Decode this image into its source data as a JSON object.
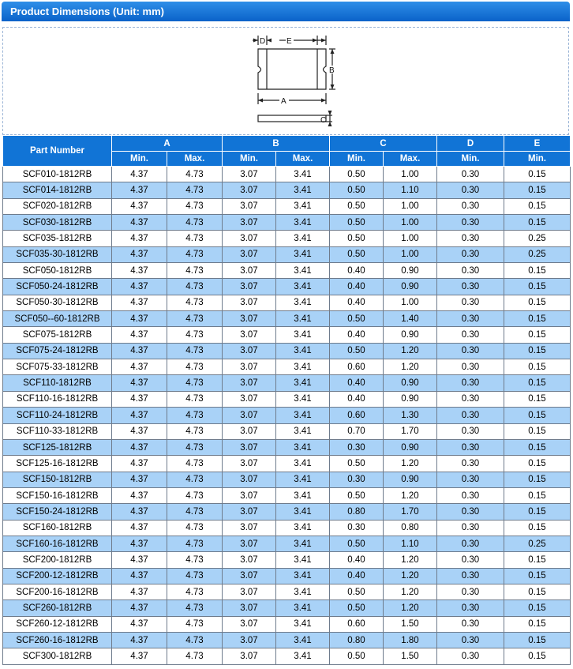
{
  "title": "Product Dimensions (Unit: mm)",
  "diagram": {
    "labels": [
      "D",
      "E",
      "B",
      "A",
      "C"
    ]
  },
  "table": {
    "part_header": "Part Number",
    "groups": [
      "A",
      "B",
      "C",
      "D",
      "E"
    ],
    "sub_headers": [
      "Min.",
      "Max.",
      "Min.",
      "Max.",
      "Min.",
      "Max.",
      "Min.",
      "Min."
    ],
    "rows": [
      [
        "SCF010-1812RB",
        "4.37",
        "4.73",
        "3.07",
        "3.41",
        "0.50",
        "1.00",
        "0.30",
        "0.15"
      ],
      [
        "SCF014-1812RB",
        "4.37",
        "4.73",
        "3.07",
        "3.41",
        "0.50",
        "1.10",
        "0.30",
        "0.15"
      ],
      [
        "SCF020-1812RB",
        "4.37",
        "4.73",
        "3.07",
        "3.41",
        "0.50",
        "1.00",
        "0.30",
        "0.15"
      ],
      [
        "SCF030-1812RB",
        "4.37",
        "4.73",
        "3.07",
        "3.41",
        "0.50",
        "1.00",
        "0.30",
        "0.15"
      ],
      [
        "SCF035-1812RB",
        "4.37",
        "4.73",
        "3.07",
        "3.41",
        "0.50",
        "1.00",
        "0.30",
        "0.25"
      ],
      [
        "SCF035-30-1812RB",
        "4.37",
        "4.73",
        "3.07",
        "3.41",
        "0.50",
        "1.00",
        "0.30",
        "0.25"
      ],
      [
        "SCF050-1812RB",
        "4.37",
        "4.73",
        "3.07",
        "3.41",
        "0.40",
        "0.90",
        "0.30",
        "0.15"
      ],
      [
        "SCF050-24-1812RB",
        "4.37",
        "4.73",
        "3.07",
        "3.41",
        "0.40",
        "0.90",
        "0.30",
        "0.15"
      ],
      [
        "SCF050-30-1812RB",
        "4.37",
        "4.73",
        "3.07",
        "3.41",
        "0.40",
        "1.00",
        "0.30",
        "0.15"
      ],
      [
        "SCF050--60-1812RB",
        "4.37",
        "4.73",
        "3.07",
        "3.41",
        "0.50",
        "1.40",
        "0.30",
        "0.15"
      ],
      [
        "SCF075-1812RB",
        "4.37",
        "4.73",
        "3.07",
        "3.41",
        "0.40",
        "0.90",
        "0.30",
        "0.15"
      ],
      [
        "SCF075-24-1812RB",
        "4.37",
        "4.73",
        "3.07",
        "3.41",
        "0.50",
        "1.20",
        "0.30",
        "0.15"
      ],
      [
        "SCF075-33-1812RB",
        "4.37",
        "4.73",
        "3.07",
        "3.41",
        "0.60",
        "1.20",
        "0.30",
        "0.15"
      ],
      [
        "SCF110-1812RB",
        "4.37",
        "4.73",
        "3.07",
        "3.41",
        "0.40",
        "0.90",
        "0.30",
        "0.15"
      ],
      [
        "SCF110-16-1812RB",
        "4.37",
        "4.73",
        "3.07",
        "3.41",
        "0.40",
        "0.90",
        "0.30",
        "0.15"
      ],
      [
        "SCF110-24-1812RB",
        "4.37",
        "4.73",
        "3.07",
        "3.41",
        "0.60",
        "1.30",
        "0.30",
        "0.15"
      ],
      [
        "SCF110-33-1812RB",
        "4.37",
        "4.73",
        "3.07",
        "3.41",
        "0.70",
        "1.70",
        "0.30",
        "0.15"
      ],
      [
        "SCF125-1812RB",
        "4.37",
        "4.73",
        "3.07",
        "3.41",
        "0.30",
        "0.90",
        "0.30",
        "0.15"
      ],
      [
        "SCF125-16-1812RB",
        "4.37",
        "4.73",
        "3.07",
        "3.41",
        "0.50",
        "1.20",
        "0.30",
        "0.15"
      ],
      [
        "SCF150-1812RB",
        "4.37",
        "4.73",
        "3.07",
        "3.41",
        "0.30",
        "0.90",
        "0.30",
        "0.15"
      ],
      [
        "SCF150-16-1812RB",
        "4.37",
        "4.73",
        "3.07",
        "3.41",
        "0.50",
        "1.20",
        "0.30",
        "0.15"
      ],
      [
        "SCF150-24-1812RB",
        "4.37",
        "4.73",
        "3.07",
        "3.41",
        "0.80",
        "1.70",
        "0.30",
        "0.15"
      ],
      [
        "SCF160-1812RB",
        "4.37",
        "4.73",
        "3.07",
        "3.41",
        "0.30",
        "0.80",
        "0.30",
        "0.15"
      ],
      [
        "SCF160-16-1812RB",
        "4.37",
        "4.73",
        "3.07",
        "3.41",
        "0.50",
        "1.10",
        "0.30",
        "0.25"
      ],
      [
        "SCF200-1812RB",
        "4.37",
        "4.73",
        "3.07",
        "3.41",
        "0.40",
        "1.20",
        "0.30",
        "0.15"
      ],
      [
        "SCF200-12-1812RB",
        "4.37",
        "4.73",
        "3.07",
        "3.41",
        "0.40",
        "1.20",
        "0.30",
        "0.15"
      ],
      [
        "SCF200-16-1812RB",
        "4.37",
        "4.73",
        "3.07",
        "3.41",
        "0.50",
        "1.20",
        "0.30",
        "0.15"
      ],
      [
        "SCF260-1812RB",
        "4.37",
        "4.73",
        "3.07",
        "3.41",
        "0.50",
        "1.20",
        "0.30",
        "0.15"
      ],
      [
        "SCF260-12-1812RB",
        "4.37",
        "4.73",
        "3.07",
        "3.41",
        "0.60",
        "1.50",
        "0.30",
        "0.15"
      ],
      [
        "SCF260-16-1812RB",
        "4.37",
        "4.73",
        "3.07",
        "3.41",
        "0.80",
        "1.80",
        "0.30",
        "0.15"
      ],
      [
        "SCF300-1812RB",
        "4.37",
        "4.73",
        "3.07",
        "3.41",
        "0.50",
        "1.50",
        "0.30",
        "0.15"
      ]
    ]
  }
}
